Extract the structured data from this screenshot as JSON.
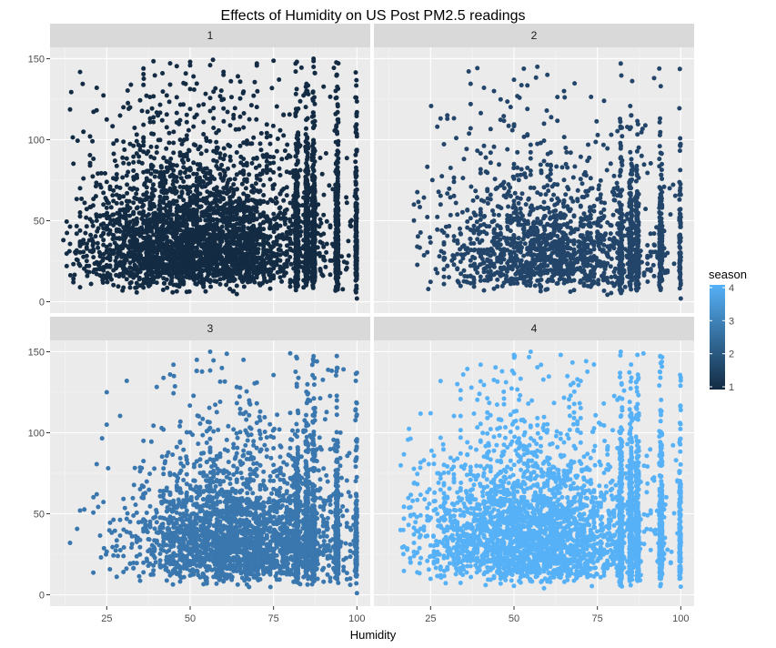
{
  "chart_data": {
    "type": "scatter",
    "title": "Effects of Humidity on US Post PM2.5 readings",
    "xlabel": "Humidity",
    "ylabel": "",
    "xlim": [
      8,
      104
    ],
    "ylim": [
      -7,
      157
    ],
    "x_ticks": [
      25,
      50,
      75,
      100
    ],
    "y_ticks": [
      0,
      50,
      100,
      150
    ],
    "x_tick_labels": [
      "25",
      "50",
      "75",
      "100"
    ],
    "y_tick_labels": [
      "0",
      "50",
      "100",
      "150"
    ],
    "grid": true,
    "facet_by": "season",
    "legend": {
      "title": "season",
      "placement": "right",
      "min": 1,
      "max": 4,
      "ticks": [
        1,
        2,
        3,
        4
      ],
      "tick_labels": [
        "1",
        "2",
        "3",
        "4"
      ],
      "color_low": "#132B43",
      "color_high": "#56B1F7"
    },
    "panels": [
      {
        "label": "1",
        "season": 1,
        "color": "#132B43",
        "humidity_min": 13,
        "humidity_peak": 52,
        "humidity_spread": 18,
        "pm25_median": 40,
        "pm25_max": 150,
        "density": 1.0,
        "sample_points": [
          {
            "x": 12,
            "y": 38
          },
          {
            "x": 15,
            "y": 12
          },
          {
            "x": 17,
            "y": 70
          },
          {
            "x": 20,
            "y": 102
          },
          {
            "x": 22,
            "y": 132
          },
          {
            "x": 30,
            "y": 120
          },
          {
            "x": 44,
            "y": 134
          },
          {
            "x": 50,
            "y": 148
          },
          {
            "x": 56,
            "y": 146
          },
          {
            "x": 60,
            "y": 140
          },
          {
            "x": 70,
            "y": 147
          },
          {
            "x": 82,
            "y": 148
          },
          {
            "x": 87,
            "y": 150
          },
          {
            "x": 94,
            "y": 140
          },
          {
            "x": 100,
            "y": 117
          },
          {
            "x": 100,
            "y": 102
          },
          {
            "x": 100,
            "y": 2
          }
        ]
      },
      {
        "label": "2",
        "season": 2,
        "color": "#23456A",
        "humidity_min": 20,
        "humidity_peak": 60,
        "humidity_spread": 16,
        "pm25_median": 35,
        "pm25_max": 147,
        "density": 0.45,
        "sample_points": [
          {
            "x": 20,
            "y": 60
          },
          {
            "x": 21,
            "y": 34
          },
          {
            "x": 27,
            "y": 108
          },
          {
            "x": 30,
            "y": 115
          },
          {
            "x": 37,
            "y": 122
          },
          {
            "x": 41,
            "y": 132
          },
          {
            "x": 44,
            "y": 130
          },
          {
            "x": 50,
            "y": 137
          },
          {
            "x": 57,
            "y": 145
          },
          {
            "x": 60,
            "y": 140
          },
          {
            "x": 65,
            "y": 130
          },
          {
            "x": 82,
            "y": 147
          },
          {
            "x": 92,
            "y": 138
          },
          {
            "x": 94,
            "y": 133
          },
          {
            "x": 100,
            "y": 66
          },
          {
            "x": 100,
            "y": 2
          }
        ]
      },
      {
        "label": "3",
        "season": 3,
        "color": "#3A77AE",
        "humidity_min": 15,
        "humidity_peak": 65,
        "humidity_spread": 16,
        "pm25_median": 38,
        "pm25_max": 150,
        "density": 0.75,
        "sample_points": [
          {
            "x": 14,
            "y": 32
          },
          {
            "x": 17,
            "y": 52
          },
          {
            "x": 22,
            "y": 62
          },
          {
            "x": 25,
            "y": 125
          },
          {
            "x": 31,
            "y": 132
          },
          {
            "x": 45,
            "y": 142
          },
          {
            "x": 52,
            "y": 145
          },
          {
            "x": 56,
            "y": 150
          },
          {
            "x": 66,
            "y": 145
          },
          {
            "x": 80,
            "y": 149
          },
          {
            "x": 87,
            "y": 144
          },
          {
            "x": 94,
            "y": 140
          },
          {
            "x": 100,
            "y": 137
          },
          {
            "x": 100,
            "y": 96
          },
          {
            "x": 100,
            "y": 1
          }
        ]
      },
      {
        "label": "4",
        "season": 4,
        "color": "#56B1F7",
        "humidity_min": 16,
        "humidity_peak": 55,
        "humidity_spread": 17,
        "pm25_median": 40,
        "pm25_max": 150,
        "density": 0.85,
        "sample_points": [
          {
            "x": 17,
            "y": 47
          },
          {
            "x": 19,
            "y": 54
          },
          {
            "x": 23,
            "y": 83
          },
          {
            "x": 25,
            "y": 112
          },
          {
            "x": 33,
            "y": 130
          },
          {
            "x": 40,
            "y": 142
          },
          {
            "x": 50,
            "y": 148
          },
          {
            "x": 55,
            "y": 150
          },
          {
            "x": 64,
            "y": 148
          },
          {
            "x": 82,
            "y": 150
          },
          {
            "x": 87,
            "y": 148
          },
          {
            "x": 94,
            "y": 143
          },
          {
            "x": 100,
            "y": 134
          },
          {
            "x": 100,
            "y": 114
          },
          {
            "x": 100,
            "y": 5
          }
        ]
      }
    ]
  }
}
